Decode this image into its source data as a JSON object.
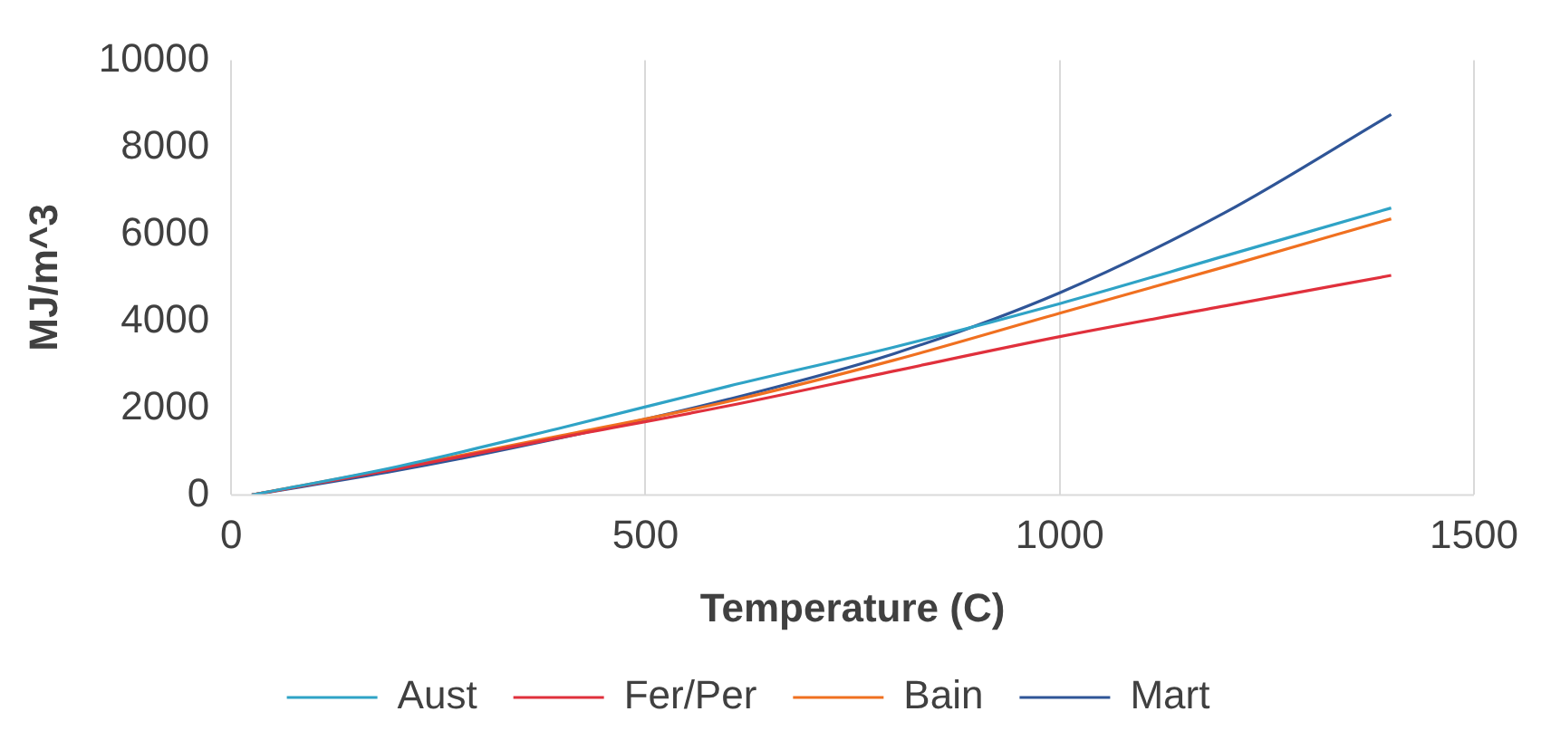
{
  "chart_data": {
    "type": "line",
    "xlabel": "Temperature (C)",
    "ylabel": "MJ/m^3",
    "xlim": [
      0,
      1500
    ],
    "xticks": [
      0,
      500,
      1000,
      1500
    ],
    "ylim": [
      0,
      10000
    ],
    "yticks": [
      0,
      2000,
      4000,
      6000,
      8000,
      10000
    ],
    "grid": "x",
    "legend": "bottom",
    "marker": "none",
    "x": [
      25,
      200,
      400,
      600,
      800,
      1000,
      1200,
      1400
    ],
    "series": [
      {
        "name": "Aust",
        "color": "#2fa3c6",
        "values": [
          0,
          650,
          1550,
          2500,
          3400,
          4400,
          5500,
          6600
        ]
      },
      {
        "name": "Fer/Per",
        "color": "#e0303c",
        "values": [
          0,
          600,
          1330,
          2050,
          2850,
          3640,
          4350,
          5050
        ]
      },
      {
        "name": "Bain",
        "color": "#f07020",
        "values": [
          0,
          620,
          1370,
          2150,
          3100,
          4180,
          5250,
          6350
        ]
      },
      {
        "name": "Mart",
        "color": "#2f5597",
        "values": [
          0,
          560,
          1320,
          2200,
          3250,
          4650,
          6500,
          8750
        ]
      }
    ]
  }
}
